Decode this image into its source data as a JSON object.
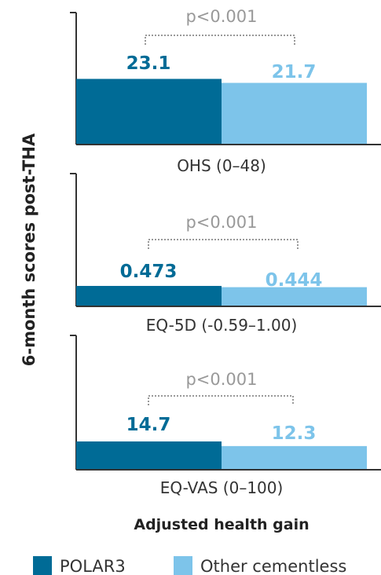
{
  "chart_data": {
    "type": "bar",
    "ylabel": "6-month scores post-THA",
    "xlabel": "Adjusted health gain",
    "legend": {
      "placement": "bottom"
    },
    "series": [
      {
        "name": "POLAR3",
        "color": "#006b96"
      },
      {
        "name": "Other cementless",
        "color": "#7dc4ea"
      }
    ],
    "panels": [
      {
        "category": "OHS (0–48)",
        "values": [
          23.1,
          21.7
        ],
        "labels": [
          "23.1",
          "21.7"
        ],
        "p_value": "p<0.001"
      },
      {
        "category": "EQ-5D (-0.59–1.00)",
        "values": [
          0.473,
          0.444
        ],
        "labels": [
          "0.473",
          "0.444"
        ],
        "p_value": "p<0.001"
      },
      {
        "category": "EQ-VAS (0–100)",
        "values": [
          14.7,
          12.3
        ],
        "labels": [
          "14.7",
          "12.3"
        ],
        "p_value": "p<0.001"
      }
    ]
  }
}
